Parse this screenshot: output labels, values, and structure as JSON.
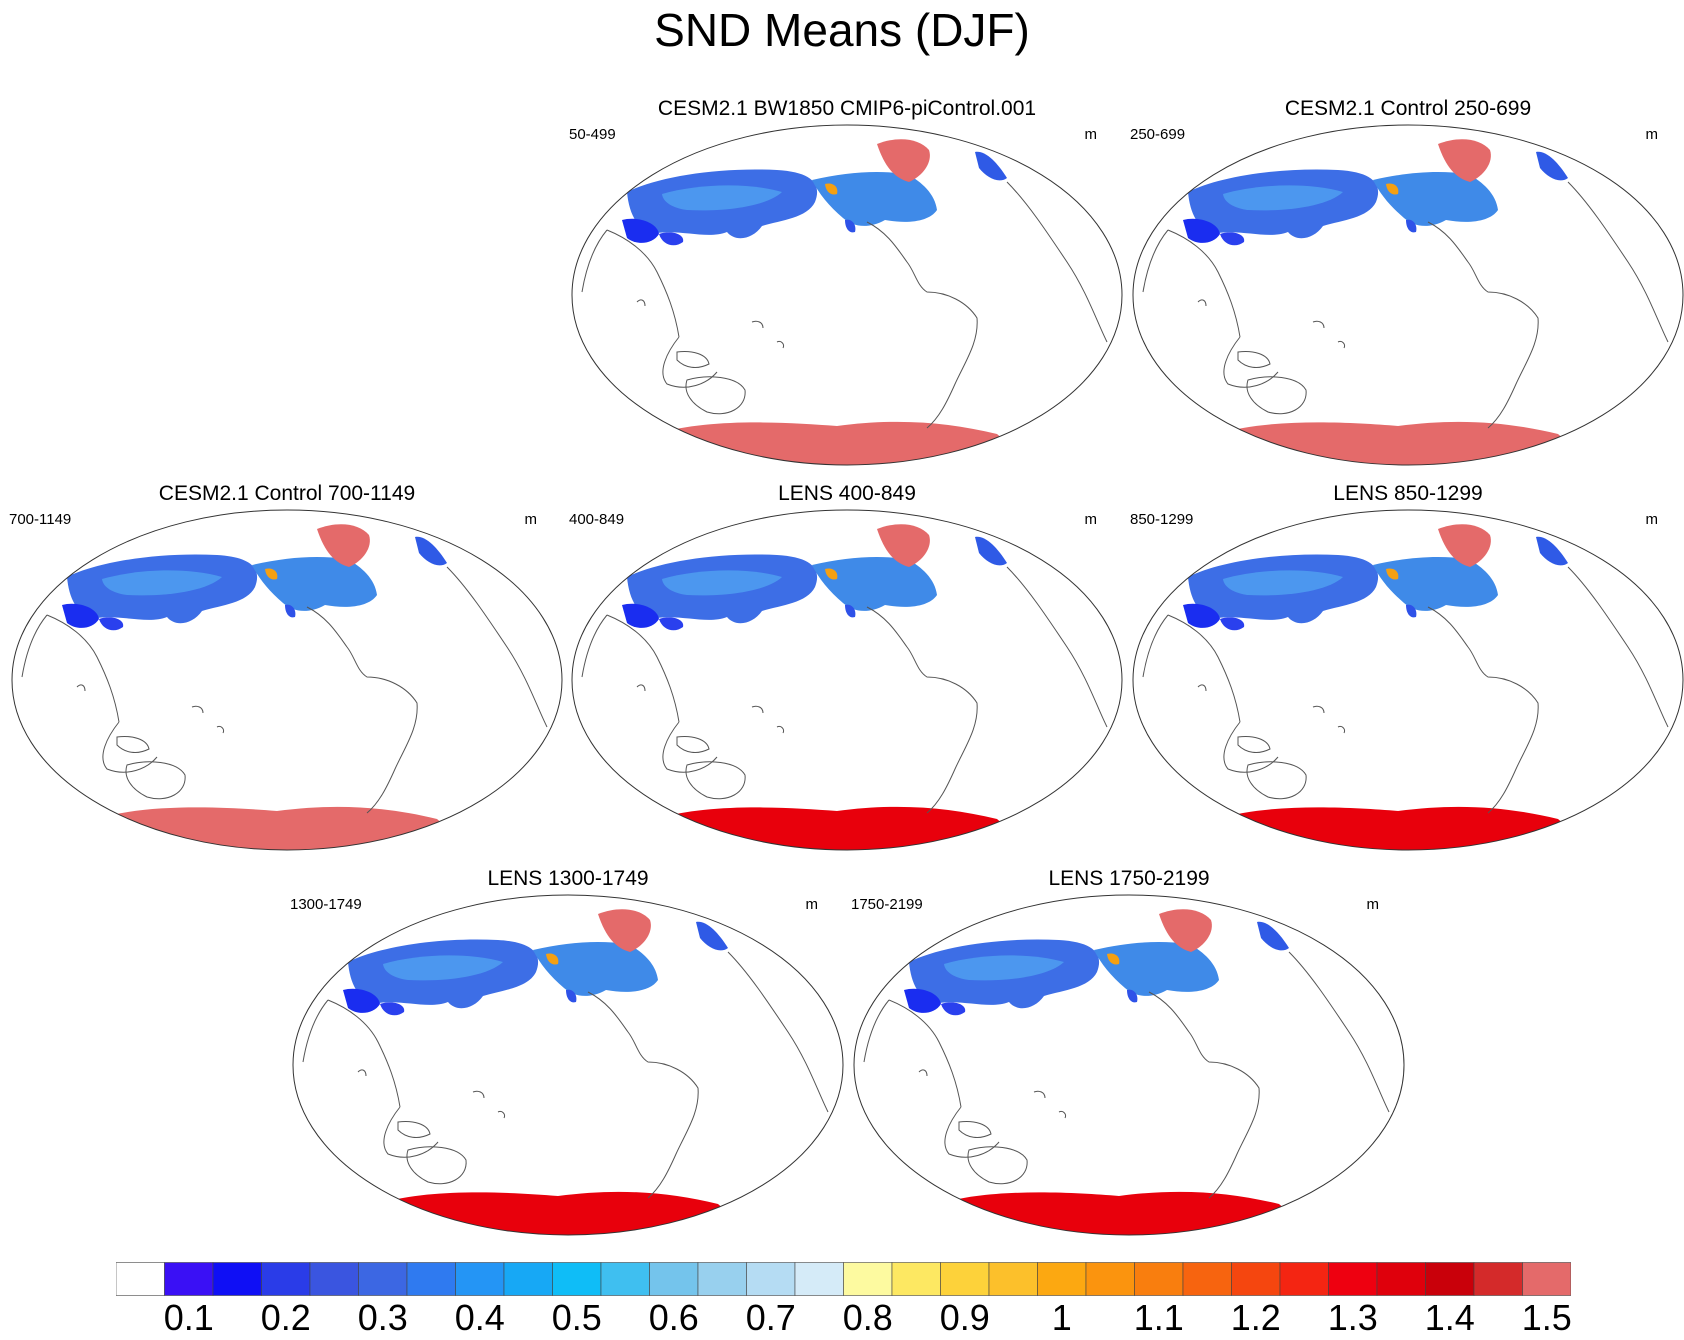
{
  "figure": {
    "title": "SND Means (DJF)"
  },
  "panels": [
    {
      "title": "CESM2.1 BW1850 CMIP6-piControl.001",
      "range": "50-499",
      "unit": "m",
      "antarctica_level": "1.5",
      "greenland_level": "1.5"
    },
    {
      "title": "CESM2.1 Control 250-699",
      "range": "250-699",
      "unit": "m",
      "antarctica_level": "1.5",
      "greenland_level": "1.5"
    },
    {
      "title": "CESM2.1 Control 700-1149",
      "range": "700-1149",
      "unit": "m",
      "antarctica_level": "1.5",
      "greenland_level": "1.5"
    },
    {
      "title": "LENS 400-849",
      "range": "400-849",
      "unit": "m",
      "antarctica_level": "1.4",
      "greenland_level": "1.5"
    },
    {
      "title": "LENS 850-1299",
      "range": "850-1299",
      "unit": "m",
      "antarctica_level": "1.4",
      "greenland_level": "1.5"
    },
    {
      "title": "LENS 1300-1749",
      "range": "1300-1749",
      "unit": "m",
      "antarctica_level": "1.4",
      "greenland_level": "1.5"
    },
    {
      "title": "LENS 1750-2199",
      "range": "1750-2199",
      "unit": "m",
      "antarctica_level": "1.4",
      "greenland_level": "1.5"
    }
  ],
  "colorbar": {
    "labels": [
      "0.1",
      "0.2",
      "0.3",
      "0.4",
      "0.5",
      "0.6",
      "0.7",
      "0.8",
      "0.9",
      "1",
      "1.1",
      "1.2",
      "1.3",
      "1.4",
      "1.5"
    ],
    "colors": [
      "#ffffff",
      "#3a10f5",
      "#0f0ff5",
      "#2a3ce8",
      "#3a55e0",
      "#3c67e3",
      "#2f7af0",
      "#2495f5",
      "#17a8f5",
      "#0fbdf7",
      "#3fbff0",
      "#74c4ec",
      "#98d0ee",
      "#b5dcf3",
      "#d5ebf8",
      "#fdfaa0",
      "#fde862",
      "#fdd23a",
      "#fcc02b",
      "#fca811",
      "#fb940e",
      "#f97e0e",
      "#f7640f",
      "#f5460f",
      "#f42512",
      "#ee0010",
      "#df000c",
      "#c9000a",
      "#d42a2a",
      "#e46a6a"
    ]
  }
}
